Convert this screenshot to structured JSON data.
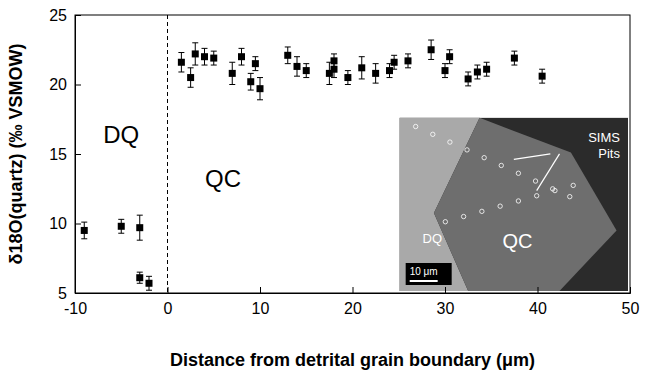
{
  "chart_data": {
    "type": "scatter",
    "x_label": "Distance from detrital grain boundary (μm)",
    "y_label": "δ18O(quartz) (‰ VSMOW)",
    "x": [
      -9,
      -5,
      -3,
      -3,
      -2,
      1.5,
      2.5,
      3,
      4,
      5,
      7,
      8,
      9,
      9.5,
      10,
      13,
      14,
      15,
      17.5,
      18,
      18,
      19.5,
      21,
      22.5,
      24,
      24.5,
      26,
      28.5,
      30,
      30.5,
      32.5,
      33.5,
      34.5,
      37.5,
      40.5
    ],
    "values": [
      9.5,
      9.8,
      9.7,
      6.1,
      5.7,
      21.6,
      20.5,
      22.2,
      22.0,
      21.9,
      20.8,
      22.0,
      20.2,
      21.5,
      19.7,
      22.1,
      21.3,
      21.0,
      20.8,
      21.7,
      21.1,
      20.5,
      21.2,
      20.8,
      21.0,
      21.6,
      21.7,
      22.5,
      21.0,
      22.0,
      20.4,
      20.9,
      21.1,
      21.9,
      20.6
    ],
    "errors": [
      0.6,
      0.5,
      0.9,
      0.4,
      0.5,
      0.7,
      0.7,
      0.8,
      0.6,
      0.5,
      0.8,
      0.6,
      0.6,
      0.5,
      0.8,
      0.6,
      0.7,
      0.5,
      0.8,
      0.5,
      0.6,
      0.5,
      0.8,
      0.7,
      0.5,
      0.5,
      0.5,
      0.7,
      0.5,
      0.5,
      0.5,
      0.5,
      0.5,
      0.5,
      0.5
    ],
    "color": "#000000",
    "marker": "square",
    "xlim": [
      -10,
      50
    ],
    "xticks": [
      -10,
      0,
      10,
      20,
      30,
      40,
      50
    ],
    "ylim": [
      5,
      25
    ],
    "yticks": [
      5,
      10,
      15,
      20,
      25
    ],
    "vline": 0,
    "annotations": [
      "DQ",
      "QC"
    ],
    "inset": {
      "labels": [
        "DQ",
        "QC"
      ],
      "callout": [
        "SIMS",
        "Pits"
      ],
      "scale_bar": "10 μm"
    }
  }
}
